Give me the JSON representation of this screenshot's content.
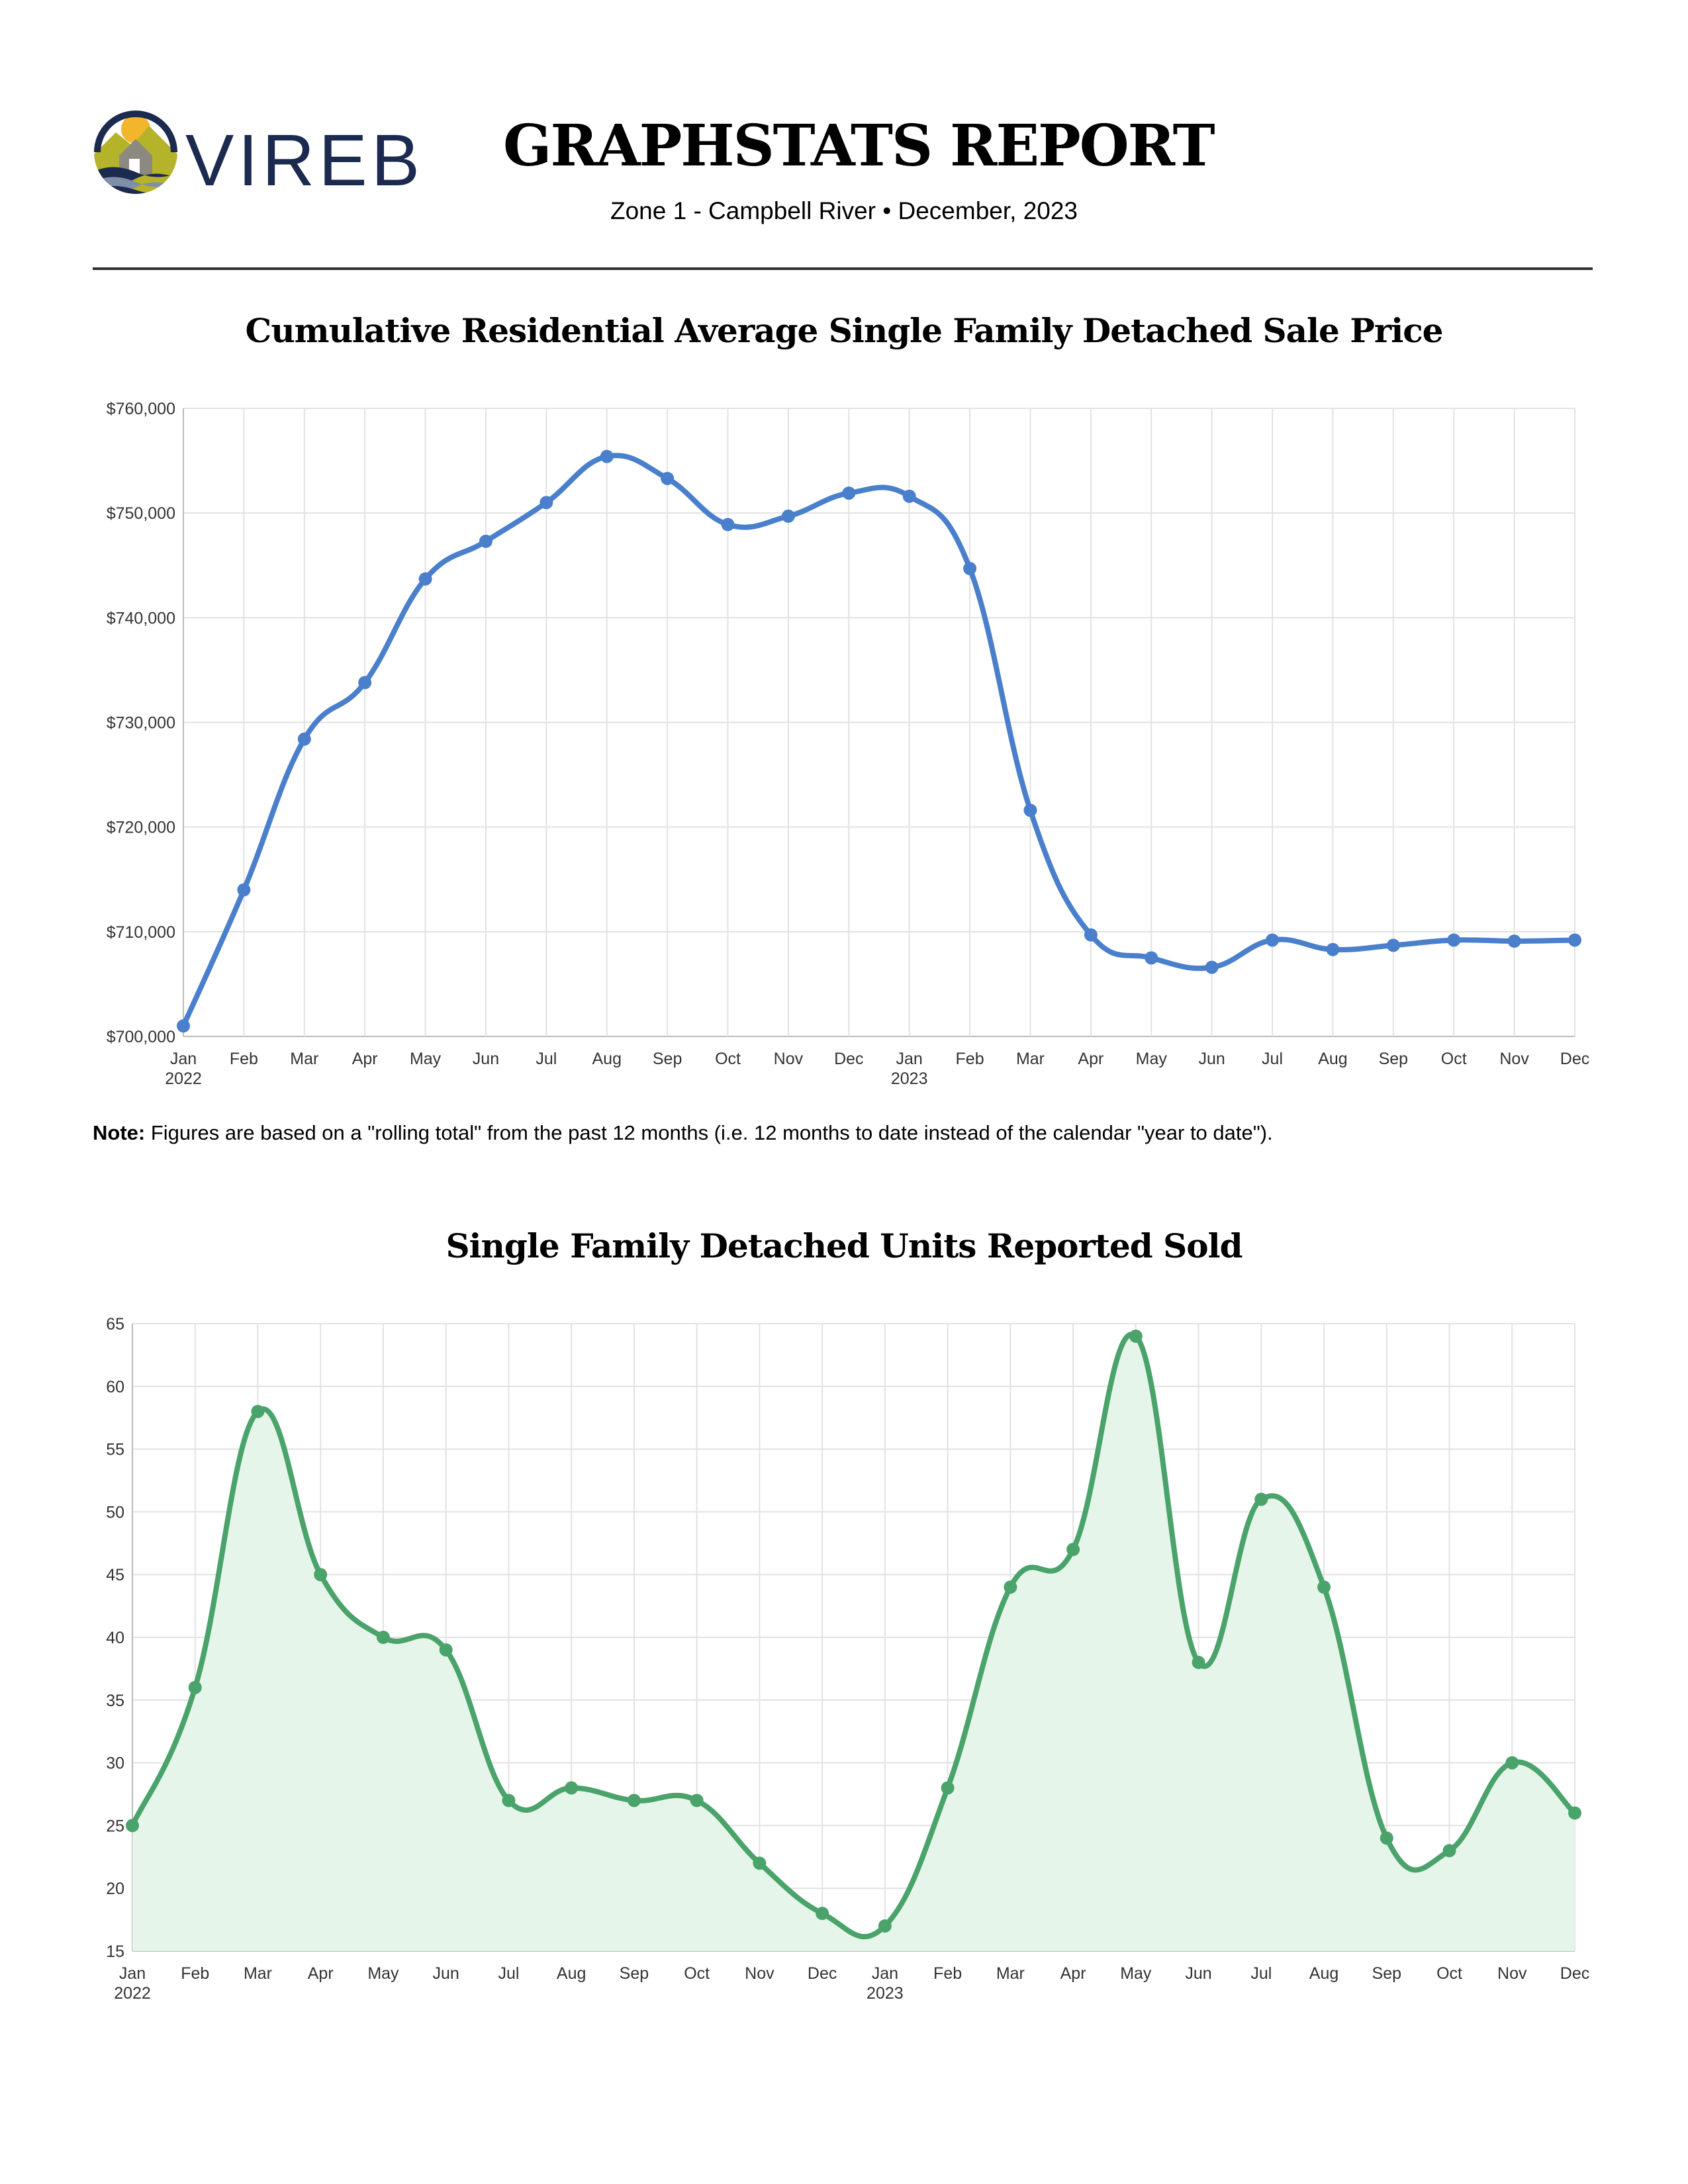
{
  "header": {
    "logo_text": "VIREB",
    "title": "GRAPHSTATS REPORT",
    "zone": "Zone 1 - Campbell River",
    "separator": "•",
    "period": "December, 2023"
  },
  "note": {
    "label": "Note:",
    "text": " Figures are based on a \"rolling total\" from the past 12 months (i.e. 12 months to date instead of the calendar \"year to date\")."
  },
  "chart_data": [
    {
      "type": "line",
      "title": "Cumulative Residential Average Single Family Detached Sale Price",
      "categories": [
        "Jan",
        "Feb",
        "Mar",
        "Apr",
        "May",
        "Jun",
        "Jul",
        "Aug",
        "Sep",
        "Oct",
        "Nov",
        "Dec",
        "Jan",
        "Feb",
        "Mar",
        "Apr",
        "May",
        "Jun",
        "Jul",
        "Aug",
        "Sep",
        "Oct",
        "Nov",
        "Dec"
      ],
      "year_labels": {
        "0": "2022",
        "12": "2023"
      },
      "values": [
        701000,
        714000,
        728400,
        733800,
        743700,
        747300,
        751000,
        755400,
        753300,
        748900,
        749700,
        751900,
        751600,
        744700,
        721600,
        709700,
        707500,
        706600,
        709200,
        708300,
        708700,
        709200,
        709100,
        709200
      ],
      "ylim": [
        700000,
        760000
      ],
      "yticks": [
        700000,
        710000,
        720000,
        730000,
        740000,
        750000,
        760000
      ],
      "ytick_labels": [
        "$700,000",
        "$710,000",
        "$720,000",
        "$730,000",
        "$740,000",
        "$750,000",
        "$760,000"
      ],
      "grid": true,
      "smooth": true,
      "color": "#4a7fcc"
    },
    {
      "type": "area",
      "title": "Single Family Detached Units Reported Sold",
      "categories": [
        "Jan",
        "Feb",
        "Mar",
        "Apr",
        "May",
        "Jun",
        "Jul",
        "Aug",
        "Sep",
        "Oct",
        "Nov",
        "Dec",
        "Jan",
        "Feb",
        "Mar",
        "Apr",
        "May",
        "Jun",
        "Jul",
        "Aug",
        "Sep",
        "Oct",
        "Nov",
        "Dec"
      ],
      "year_labels": {
        "0": "2022",
        "12": "2023"
      },
      "values": [
        25,
        36,
        58,
        45,
        40,
        39,
        27,
        28,
        27,
        27,
        22,
        18,
        17,
        28,
        44,
        47,
        64,
        38,
        51,
        44,
        24,
        23,
        30,
        26
      ],
      "ylim": [
        15,
        65
      ],
      "yticks": [
        15,
        20,
        25,
        30,
        35,
        40,
        45,
        50,
        55,
        60,
        65
      ],
      "ytick_labels": [
        "15",
        "20",
        "25",
        "30",
        "35",
        "40",
        "45",
        "50",
        "55",
        "60",
        "65"
      ],
      "grid": true,
      "smooth": true,
      "color": "#4aa36a",
      "fill_color": "#e6f5ea"
    }
  ]
}
